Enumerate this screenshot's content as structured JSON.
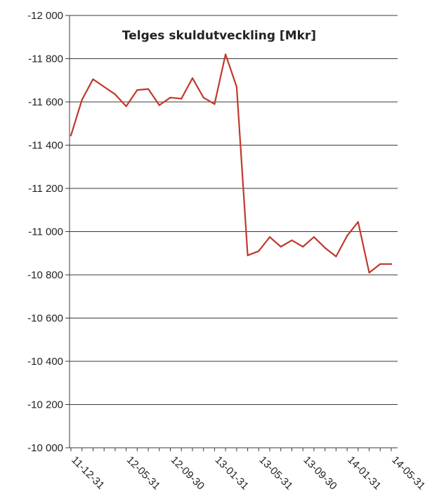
{
  "chart_data": {
    "type": "line",
    "title": "Telges skuldutveckling [Mkr]",
    "xlabel": "",
    "ylabel": "",
    "y_axis_reversed": true,
    "ylim": [
      -10000,
      -12000
    ],
    "y_ticks": [
      -12000,
      -11800,
      -11600,
      -11400,
      -11200,
      -11000,
      -10800,
      -10600,
      -10400,
      -10200,
      -10000
    ],
    "y_tick_labels": [
      "-12 000",
      "-11 800",
      "-11 600",
      "-11 400",
      "-11 200",
      "-11 000",
      "-10 800",
      "-10 600",
      "-10 400",
      "-10 200",
      "-10 000"
    ],
    "x_tick_labels": [
      "11-12-31",
      "12-05-31",
      "12-09-30",
      "13-01-31",
      "13-05-31",
      "13-09-30",
      "14-01-31",
      "14-05-31"
    ],
    "grid": "horizontal",
    "legend": "none",
    "line_color": "#c0392b",
    "x": [
      "11-12-31",
      "12-01-31",
      "12-02-29",
      "12-03-31",
      "12-04-30",
      "12-05-31",
      "12-06-30",
      "12-07-31",
      "12-08-31",
      "12-09-30",
      "12-10-31",
      "12-11-30",
      "12-12-31",
      "13-01-31",
      "13-02-28",
      "13-03-31",
      "13-04-30",
      "13-05-31",
      "13-06-30",
      "13-07-31",
      "13-08-31",
      "13-09-30",
      "13-10-31",
      "13-11-30",
      "13-12-31",
      "14-01-31",
      "14-02-28",
      "14-03-31",
      "14-04-30",
      "14-05-31"
    ],
    "values": [
      -11445,
      -11610,
      -11705,
      -11670,
      -11635,
      -11580,
      -11655,
      -11660,
      -11585,
      -11620,
      -11615,
      -11710,
      -11620,
      -11590,
      -11820,
      -11670,
      -10890,
      -10910,
      -10975,
      -10930,
      -10960,
      -10930,
      -10975,
      -10925,
      -10885,
      -10980,
      -11045,
      -10810,
      -10850,
      -10850
    ]
  }
}
